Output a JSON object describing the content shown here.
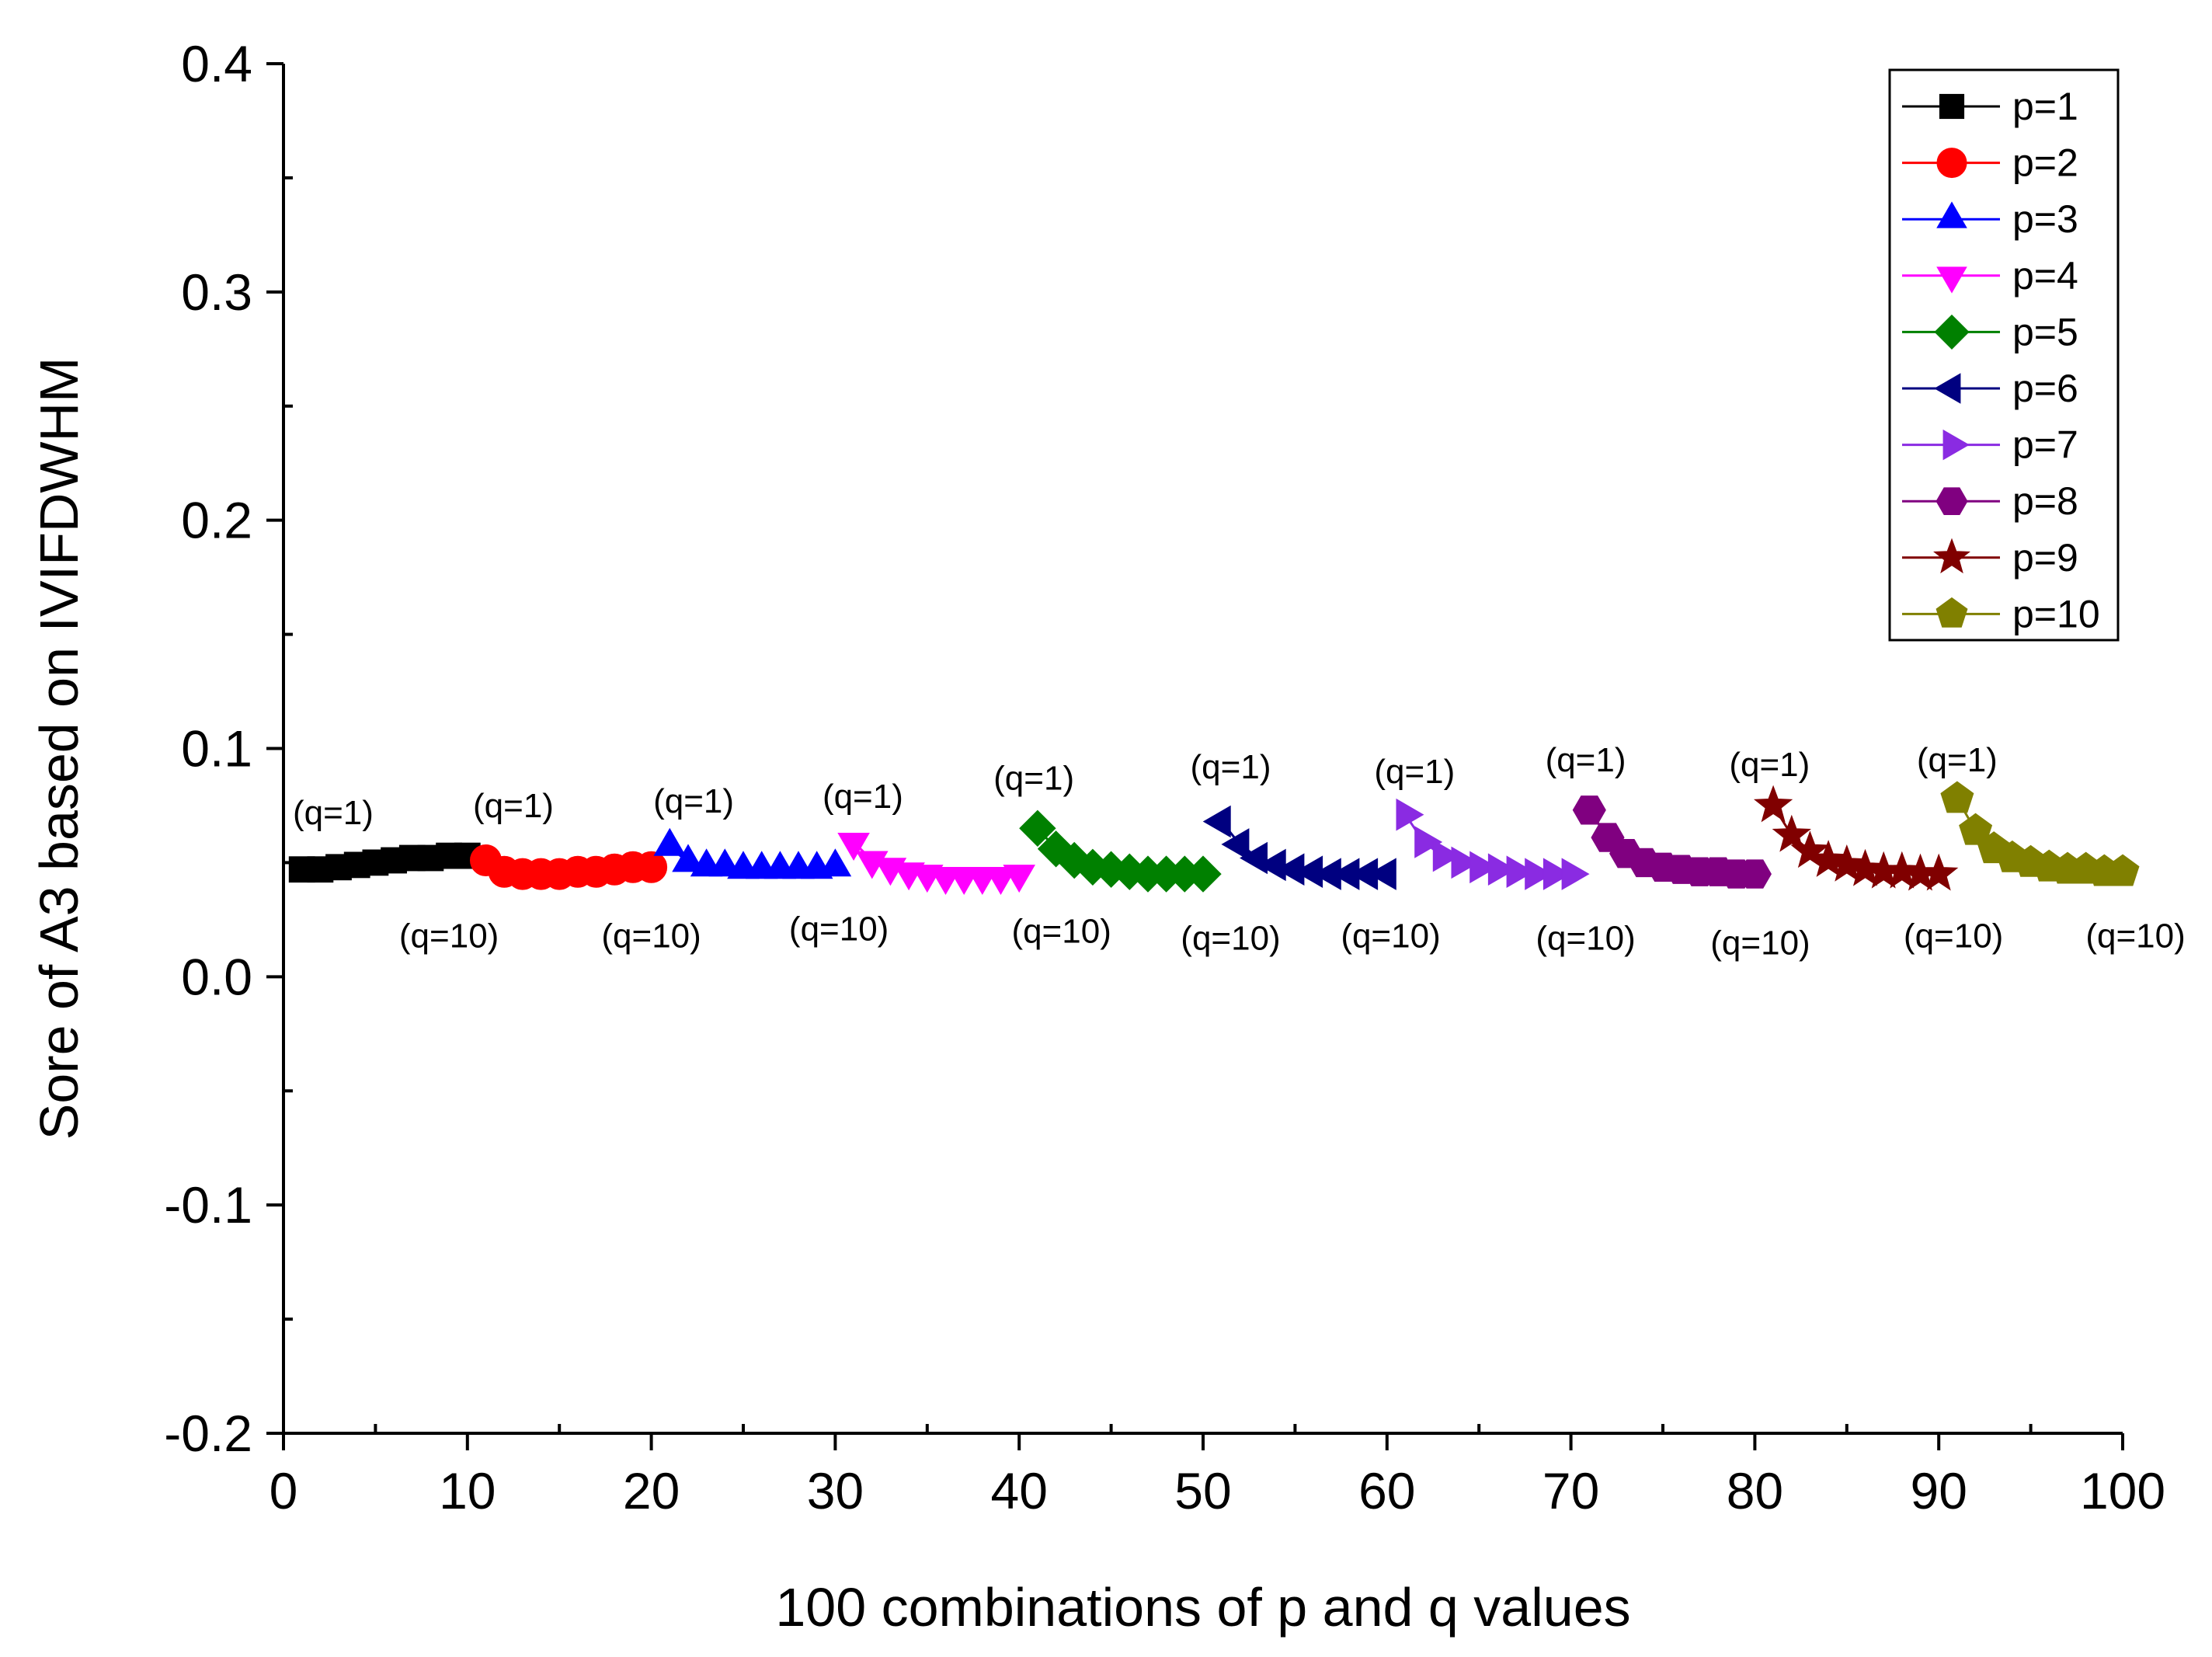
{
  "chart_data": {
    "type": "scatter",
    "title": "",
    "xlabel": "100 combinations of p and q values",
    "ylabel": "Sore of A3 based on IVIFDWHM",
    "xlim": [
      0,
      100
    ],
    "ylim": [
      -0.2,
      0.4
    ],
    "x_ticks": [
      "0",
      "10",
      "20",
      "30",
      "40",
      "50",
      "60",
      "70",
      "80",
      "90",
      "100"
    ],
    "y_ticks": [
      "-0.2",
      "-0.1",
      "0.0",
      "0.1",
      "0.2",
      "0.3",
      "0.4"
    ],
    "legend_position": "top-right",
    "grid": false,
    "series": [
      {
        "name": "p=1",
        "color": "#000000",
        "marker": "square",
        "x": [
          1,
          2,
          3,
          4,
          5,
          6,
          7,
          8,
          9,
          10
        ],
        "values": [
          0.047,
          0.047,
          0.048,
          0.049,
          0.05,
          0.051,
          0.052,
          0.052,
          0.053,
          0.053
        ]
      },
      {
        "name": "p=2",
        "color": "#ff0000",
        "marker": "circle",
        "x": [
          11,
          12,
          13,
          14,
          15,
          16,
          17,
          18,
          19,
          20
        ],
        "values": [
          0.051,
          0.046,
          0.045,
          0.045,
          0.045,
          0.046,
          0.046,
          0.047,
          0.048,
          0.048
        ]
      },
      {
        "name": "p=3",
        "color": "#0000ff",
        "marker": "triangle-up",
        "x": [
          21,
          22,
          23,
          24,
          25,
          26,
          27,
          28,
          29,
          30
        ],
        "values": [
          0.057,
          0.05,
          0.048,
          0.048,
          0.047,
          0.047,
          0.047,
          0.047,
          0.047,
          0.048
        ]
      },
      {
        "name": "p=4",
        "color": "#ff00ff",
        "marker": "triangle-down",
        "x": [
          31,
          32,
          33,
          34,
          35,
          36,
          37,
          38,
          39,
          40
        ],
        "values": [
          0.059,
          0.051,
          0.048,
          0.046,
          0.045,
          0.044,
          0.044,
          0.044,
          0.044,
          0.045
        ]
      },
      {
        "name": "p=5",
        "color": "#008000",
        "marker": "diamond",
        "x": [
          41,
          42,
          43,
          44,
          45,
          46,
          47,
          48,
          49,
          50
        ],
        "values": [
          0.065,
          0.056,
          0.051,
          0.048,
          0.047,
          0.046,
          0.045,
          0.045,
          0.045,
          0.045
        ]
      },
      {
        "name": "p=6",
        "color": "#000080",
        "marker": "triangle-left",
        "x": [
          51,
          52,
          53,
          54,
          55,
          56,
          57,
          58,
          59,
          60
        ],
        "values": [
          0.068,
          0.058,
          0.052,
          0.049,
          0.047,
          0.046,
          0.045,
          0.045,
          0.045,
          0.045
        ]
      },
      {
        "name": "p=7",
        "color": "#8a2be2",
        "marker": "triangle-right",
        "x": [
          61,
          62,
          63,
          64,
          65,
          66,
          67,
          68,
          69,
          70
        ],
        "values": [
          0.071,
          0.059,
          0.053,
          0.05,
          0.048,
          0.047,
          0.046,
          0.045,
          0.045,
          0.045
        ]
      },
      {
        "name": "p=8",
        "color": "#800080",
        "marker": "hexagon",
        "x": [
          71,
          72,
          73,
          74,
          75,
          76,
          77,
          78,
          79,
          80
        ],
        "values": [
          0.073,
          0.061,
          0.054,
          0.05,
          0.048,
          0.047,
          0.046,
          0.046,
          0.045,
          0.045
        ]
      },
      {
        "name": "p=9",
        "color": "#800000",
        "marker": "star",
        "x": [
          81,
          82,
          83,
          84,
          85,
          86,
          87,
          88,
          89,
          90
        ],
        "values": [
          0.075,
          0.062,
          0.055,
          0.051,
          0.049,
          0.047,
          0.046,
          0.046,
          0.045,
          0.045
        ]
      },
      {
        "name": "p=10",
        "color": "#808000",
        "marker": "pentagon",
        "x": [
          91,
          92,
          93,
          94,
          95,
          96,
          97,
          98,
          99,
          100
        ],
        "values": [
          0.078,
          0.064,
          0.056,
          0.052,
          0.05,
          0.048,
          0.047,
          0.047,
          0.046,
          0.046
        ]
      }
    ],
    "annotations": [
      {
        "text": "(q=1)",
        "x": 2.7,
        "y": 0.072
      },
      {
        "text": "(q=10)",
        "x": 9,
        "y": 0.018
      },
      {
        "text": "(q=1)",
        "x": 12.5,
        "y": 0.075
      },
      {
        "text": "(q=10)",
        "x": 20,
        "y": 0.018
      },
      {
        "text": "(q=1)",
        "x": 22.3,
        "y": 0.077
      },
      {
        "text": "(q=10)",
        "x": 30.2,
        "y": 0.021
      },
      {
        "text": "(q=1)",
        "x": 31.5,
        "y": 0.079
      },
      {
        "text": "(q=10)",
        "x": 42.3,
        "y": 0.02
      },
      {
        "text": "(q=1)",
        "x": 40.8,
        "y": 0.087
      },
      {
        "text": "(q=10)",
        "x": 51.5,
        "y": 0.017
      },
      {
        "text": "(q=1)",
        "x": 51.5,
        "y": 0.092
      },
      {
        "text": "(q=10)",
        "x": 60.2,
        "y": 0.018
      },
      {
        "text": "(q=1)",
        "x": 61.5,
        "y": 0.09
      },
      {
        "text": "(q=10)",
        "x": 70.8,
        "y": 0.017
      },
      {
        "text": "(q=1)",
        "x": 70.8,
        "y": 0.095
      },
      {
        "text": "(q=10)",
        "x": 80.3,
        "y": 0.015
      },
      {
        "text": "(q=1)",
        "x": 80.8,
        "y": 0.093
      },
      {
        "text": "(q=10)",
        "x": 90.8,
        "y": 0.018
      },
      {
        "text": "(q=1)",
        "x": 91,
        "y": 0.095
      },
      {
        "text": "(q=10)",
        "x": 100.7,
        "y": 0.018
      }
    ]
  }
}
